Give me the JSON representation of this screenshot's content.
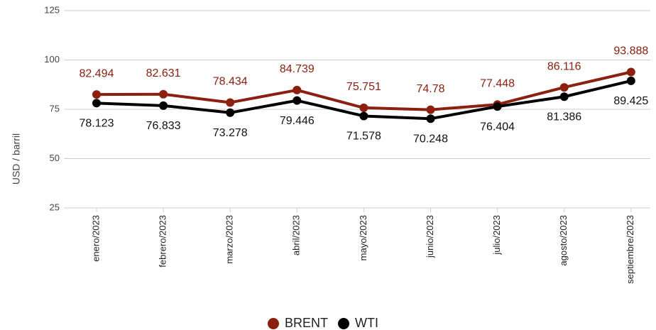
{
  "chart_data": {
    "type": "line",
    "y_label": "USD / barril",
    "categories": [
      "enero/2023",
      "febrero/2023",
      "marzo/2023",
      "abril/2023",
      "mayo/2023",
      "junio/2023",
      "julio/2023",
      "agosto/2023",
      "septiembre/2023"
    ],
    "series": [
      {
        "name": "BRENT",
        "color": "#8b2010",
        "values": [
          82.494,
          82.631,
          78.434,
          84.739,
          75.751,
          74.78,
          77.448,
          86.116,
          93.888
        ]
      },
      {
        "name": "WTI",
        "color": "#000000",
        "values": [
          78.123,
          76.833,
          73.278,
          79.446,
          71.578,
          70.248,
          76.404,
          81.386,
          89.425
        ]
      }
    ],
    "ylim": [
      25,
      125
    ],
    "yticks": [
      25,
      50,
      75,
      100,
      125
    ],
    "grid": true,
    "legend": "bottom"
  }
}
